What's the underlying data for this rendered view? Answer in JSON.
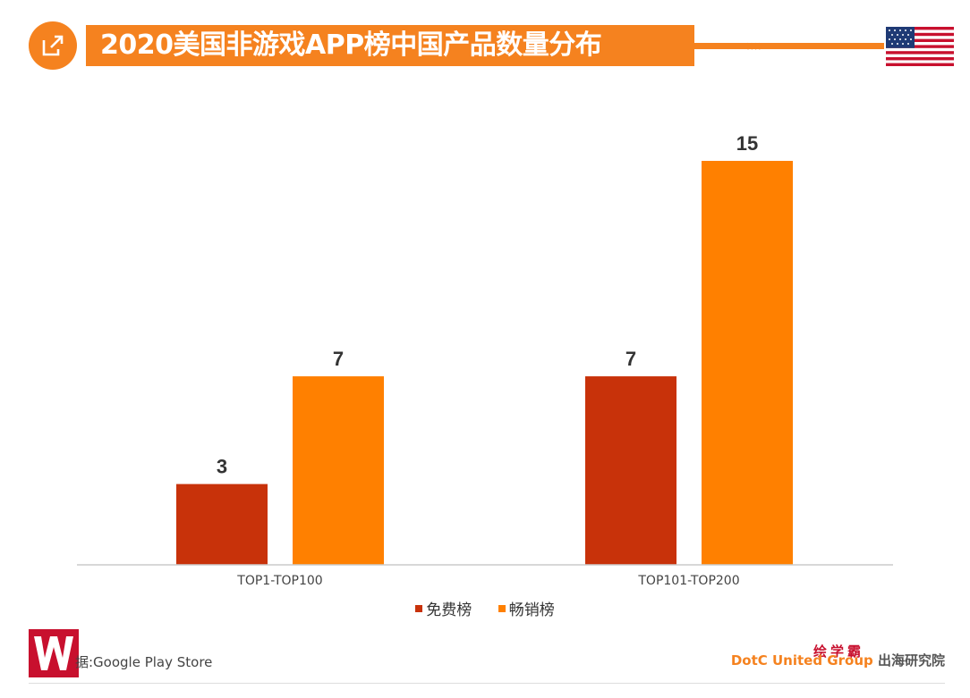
{
  "header": {
    "title": "2020美国非游戏APP榜中国产品数量分布",
    "chevrons": "»»",
    "accent_color": "#f5821f",
    "icon": "share-external-icon",
    "flag_icon": "us-flag-icon"
  },
  "chart_data": {
    "type": "bar",
    "categories": [
      "TOP1-TOP100",
      "TOP101-TOP200"
    ],
    "series": [
      {
        "name": "免费榜",
        "values": [
          3,
          7
        ],
        "color": "#c8320a"
      },
      {
        "name": "畅销榜",
        "values": [
          7,
          15
        ],
        "color": "#ff8000"
      }
    ],
    "ylim": [
      0,
      16
    ],
    "grid": false,
    "legend_position": "bottom",
    "data_labels": true
  },
  "footer": {
    "logo_icon": "w-logo-icon",
    "source": "据:Google Play Store",
    "brand": "DotC United Group",
    "brand_suffix": "出海研究院",
    "stamp": "绘学霸"
  }
}
